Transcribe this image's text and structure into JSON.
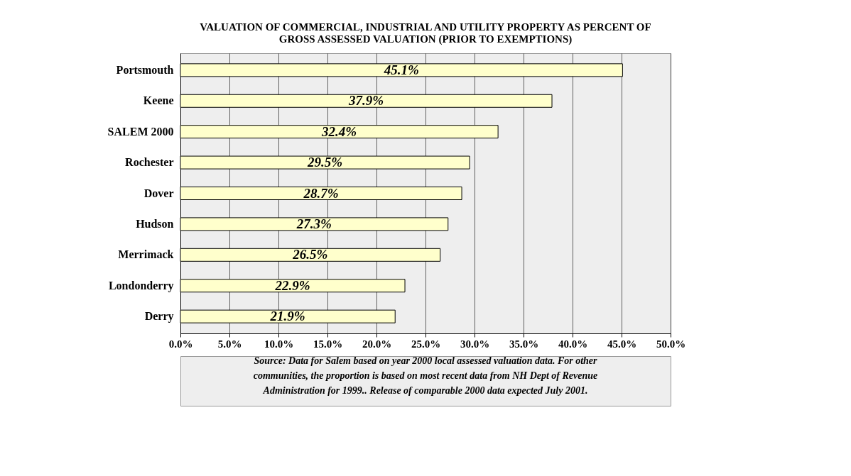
{
  "chart_data": {
    "type": "bar",
    "orientation": "horizontal",
    "title": "VALUATION OF COMMERCIAL, INDUSTRIAL AND UTILITY PROPERTY AS PERCENT OF GROSS ASSESSED VALUATION (PRIOR TO EXEMPTIONS)",
    "categories": [
      "Portsmouth",
      "Keene",
      "SALEM 2000",
      "Rochester",
      "Dover",
      "Hudson",
      "Merrimack",
      "Londonderry",
      "Derry"
    ],
    "values": [
      45.1,
      37.9,
      32.4,
      29.5,
      28.7,
      27.3,
      26.5,
      22.9,
      21.9
    ],
    "value_labels": [
      "45.1%",
      "37.9%",
      "32.4%",
      "29.5%",
      "28.7%",
      "27.3%",
      "26.5%",
      "22.9%",
      "21.9%"
    ],
    "color": "#ffffcc",
    "xlim": [
      0,
      50
    ],
    "xticks": [
      {
        "value": 0,
        "label": "0.0%"
      },
      {
        "value": 5,
        "label": "5.0%"
      },
      {
        "value": 10,
        "label": "10.0%"
      },
      {
        "value": 15,
        "label": "15.0%"
      },
      {
        "value": 20,
        "label": "20.0%"
      },
      {
        "value": 25,
        "label": "25.0%"
      },
      {
        "value": 30,
        "label": "30.0%"
      },
      {
        "value": 35,
        "label": "35.0%"
      },
      {
        "value": 40,
        "label": "40.0%"
      },
      {
        "value": 45,
        "label": "45.0%"
      },
      {
        "value": 50,
        "label": "50.0%"
      }
    ],
    "grid": "x",
    "annotations": [
      "Source:  Data for Salem based on year 2000 local assessed valuation data.  For other communities, the proportion is based on most recent data from NH Dept of Revenue Administration for 1999.. Release of comparable 2000 data expected July 2001."
    ]
  }
}
